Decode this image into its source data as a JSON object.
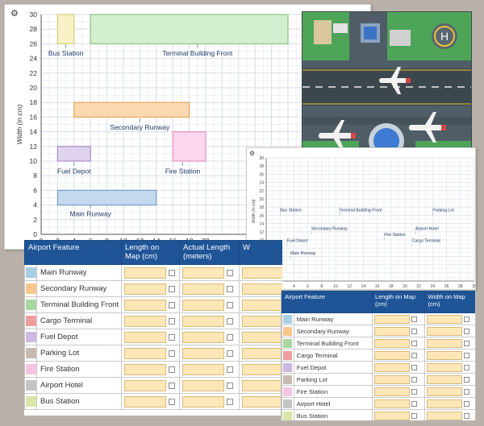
{
  "main_chart": {
    "settings_icon": "gear-icon",
    "xlabel": "Length (in cm)",
    "ylabel": "Width (in cm)",
    "xlim": [
      0,
      30
    ],
    "ylim": [
      0,
      30
    ],
    "x_ticks": [
      0,
      2,
      4,
      6,
      8,
      10,
      12,
      14,
      16,
      18,
      20
    ],
    "y_ticks": [
      0,
      2,
      4,
      6,
      8,
      10,
      12,
      14,
      16,
      18,
      20,
      22,
      24,
      26,
      28,
      30
    ],
    "features": [
      {
        "label": "Bus Station",
        "x0": 2,
        "x1": 4,
        "y0": 26,
        "y1": 30,
        "fill": "#f8f2c6",
        "stroke": "#d8cc76",
        "lx": 3,
        "ly": 24.7
      },
      {
        "label": "Terminal Building Front",
        "x0": 6,
        "x1": 30,
        "y0": 26,
        "y1": 30,
        "fill": "#d4efd0",
        "stroke": "#88c27e",
        "lx": 19,
        "ly": 24.7
      },
      {
        "label": "Secondary Runway",
        "x0": 4,
        "x1": 18,
        "y0": 16,
        "y1": 18,
        "fill": "#fcd9b1",
        "stroke": "#e8a55d",
        "lx": 12,
        "ly": 14.6
      },
      {
        "label": "Fuel Depot",
        "x0": 2,
        "x1": 6,
        "y0": 10,
        "y1": 12,
        "fill": "#e0d3ee",
        "stroke": "#a98ccf",
        "lx": 4,
        "ly": 8.6
      },
      {
        "label": "Fire Station",
        "x0": 16,
        "x1": 20,
        "y0": 10,
        "y1": 14,
        "fill": "#fad7ec",
        "stroke": "#e391c2",
        "lx": 17.2,
        "ly": 8.6
      },
      {
        "label": "Main Runway",
        "x0": 2,
        "x1": 14,
        "y0": 4,
        "y1": 6,
        "fill": "#c3d9ee",
        "stroke": "#6f9fcd",
        "lx": 6,
        "ly": 2.8
      }
    ]
  },
  "small_chart": {
    "settings_icon": "gear-icon",
    "ylabel": "Width (in cm)",
    "xlim": [
      0,
      30
    ],
    "ylim": [
      0,
      30
    ],
    "x_ticks": [
      0,
      2,
      4,
      6,
      8,
      10,
      12,
      14,
      16,
      18,
      20,
      22,
      24,
      26,
      28,
      30
    ],
    "y_ticks": [
      0,
      2,
      4,
      6,
      8,
      10,
      12,
      14,
      16,
      18,
      20,
      22,
      24,
      26,
      28,
      30
    ],
    "points": [
      {
        "label": "Bus Station",
        "x": 2,
        "y": 17
      },
      {
        "label": "Terminal Building Front",
        "x": 10.5,
        "y": 17
      },
      {
        "label": "Parking Lot",
        "x": 24,
        "y": 17
      },
      {
        "label": "Secondary Runway",
        "x": 6.5,
        "y": 12.5
      },
      {
        "label": "Airport Hotel",
        "x": 21.5,
        "y": 12.5
      },
      {
        "label": "Fire Station",
        "x": 17,
        "y": 11
      },
      {
        "label": "Fuel Depot",
        "x": 3,
        "y": 9.5
      },
      {
        "label": "Cargo Terminal",
        "x": 21,
        "y": 9.5
      },
      {
        "label": "Main Runway",
        "x": 3.5,
        "y": 6.5
      }
    ]
  },
  "photo": {
    "alt": "airport-aerial-view",
    "helipad_letter": "H"
  },
  "big_table": {
    "headers": [
      "Airport Feature",
      "Length on Map (cm)",
      "Actual Length (meters)",
      "W"
    ],
    "rows": [
      {
        "label": "Main Runway",
        "color": "#a9cde5"
      },
      {
        "label": "Secondary Runway",
        "color": "#f9c78d"
      },
      {
        "label": "Terminal Building Front",
        "color": "#a8d8a2"
      },
      {
        "label": "Cargo Terminal",
        "color": "#ee9e9e"
      },
      {
        "label": "Fuel Depot",
        "color": "#cab9e0"
      },
      {
        "label": "Parking Lot",
        "color": "#c8bcb2"
      },
      {
        "label": "Fire Station",
        "color": "#f6c4e2"
      },
      {
        "label": "Airport Hotel",
        "color": "#c5c5c5"
      },
      {
        "label": "Bus Station",
        "color": "#d9e6a7"
      }
    ]
  },
  "small_table": {
    "headers": [
      "Airport Feature",
      "Length on Map (cm)",
      "Width on Map (cm)"
    ],
    "rows": [
      {
        "label": "Main Runway",
        "color": "#a9cde5"
      },
      {
        "label": "Secondary Runway",
        "color": "#f9c78d"
      },
      {
        "label": "Terminal Building Front",
        "color": "#a8d8a2"
      },
      {
        "label": "Cargo Terminal",
        "color": "#ee9e9e"
      },
      {
        "label": "Fuel Depot",
        "color": "#cab9e0"
      },
      {
        "label": "Parking Lot",
        "color": "#c8bcb2"
      },
      {
        "label": "Fire Station",
        "color": "#f6c4e2"
      },
      {
        "label": "Airport Hotel",
        "color": "#c5c5c5"
      },
      {
        "label": "Bus Station",
        "color": "#d9e6a7"
      }
    ]
  }
}
